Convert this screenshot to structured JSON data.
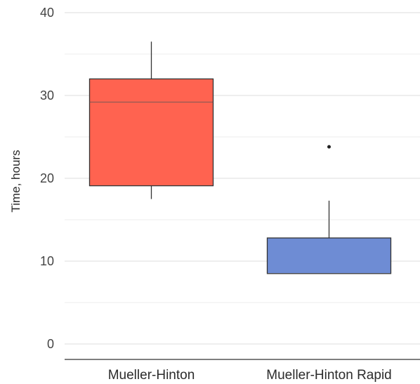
{
  "chart_data": {
    "type": "boxplot",
    "title": "",
    "xlabel": "",
    "ylabel": "Time, hours",
    "ylim": [
      0,
      40
    ],
    "yticks": [
      0,
      10,
      20,
      30,
      40
    ],
    "grid": true,
    "categories": [
      "Mueller-Hinton",
      "Mueller-Hinton Rapid"
    ],
    "boxes": [
      {
        "category": "Mueller-Hinton",
        "whisker_low": 17.5,
        "q1": 19.1,
        "median": 29.2,
        "q3": 32.0,
        "whisker_high": 36.5,
        "outliers": [],
        "color": "#FF6350"
      },
      {
        "category": "Mueller-Hinton Rapid",
        "whisker_low": 8.5,
        "q1": 8.5,
        "median": 8.5,
        "q3": 12.8,
        "whisker_high": 17.3,
        "outliers": [
          23.8
        ],
        "color": "#6E8CD4"
      }
    ]
  }
}
